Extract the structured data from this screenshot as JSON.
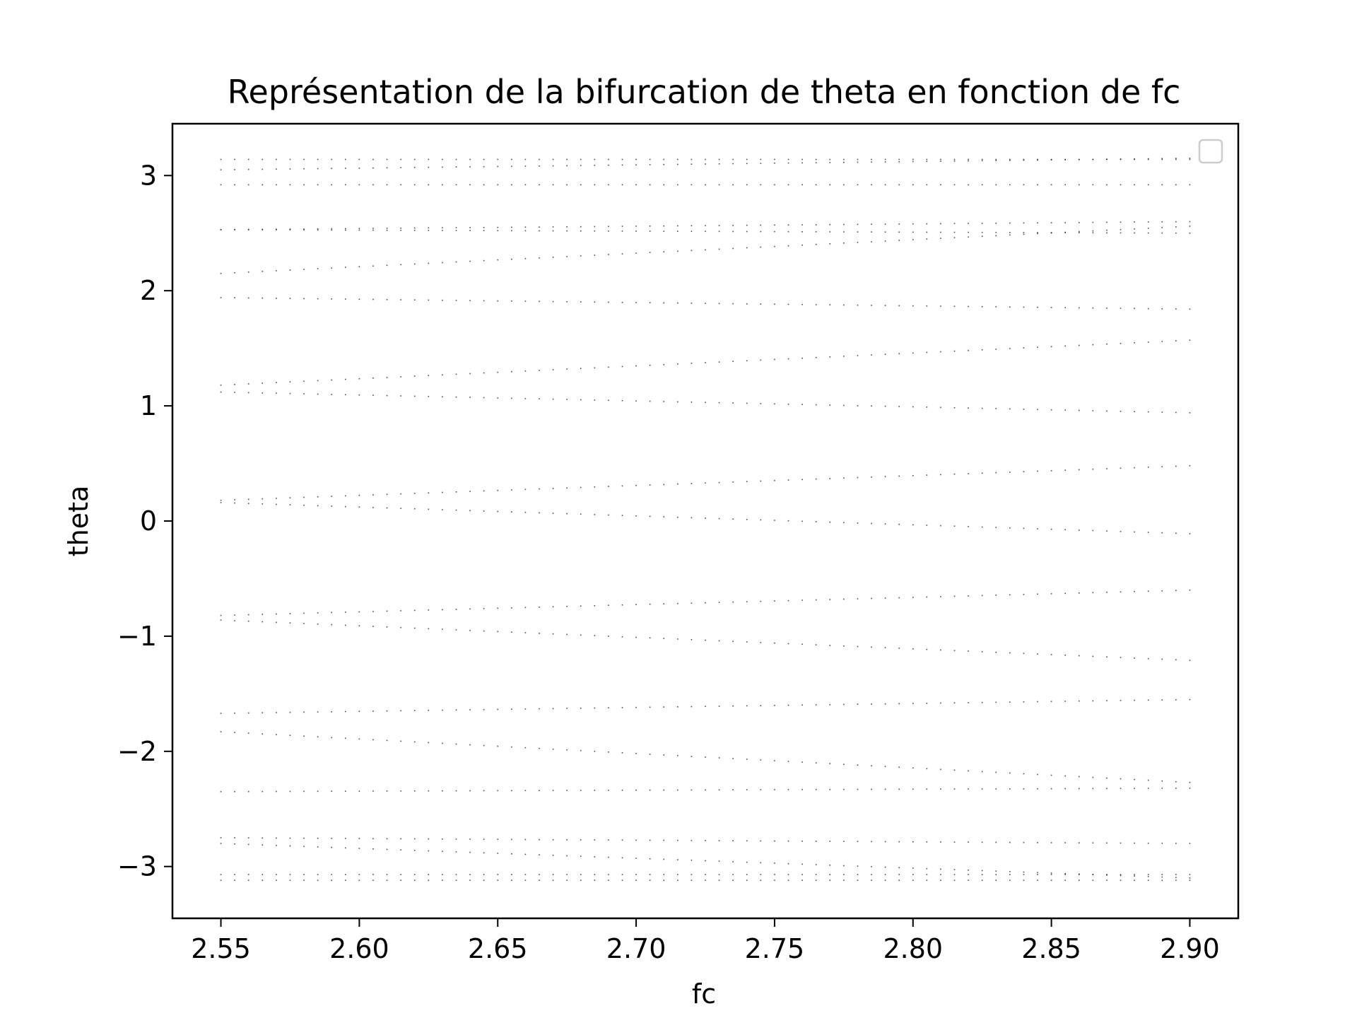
{
  "chart_data": {
    "type": "scatter",
    "title": "Représentation de la bifurcation de theta en fonction de fc",
    "xlabel": "fc",
    "ylabel": "theta",
    "xlim": [
      2.5325,
      2.9175
    ],
    "ylim": [
      -3.45,
      3.45
    ],
    "xticks": [
      2.55,
      2.6,
      2.65,
      2.7,
      2.75,
      2.8,
      2.85,
      2.9
    ],
    "xtick_labels": [
      "2.55",
      "2.60",
      "2.65",
      "2.70",
      "2.75",
      "2.80",
      "2.85",
      "2.90"
    ],
    "yticks": [
      3,
      2,
      1,
      0,
      -1,
      -2,
      -3
    ],
    "ytick_labels": [
      "3",
      "2",
      "1",
      "0",
      "−1",
      "−2",
      "−3"
    ],
    "grid": false,
    "legend": {
      "placement": "top-right",
      "entries": []
    },
    "marker_color": "#000000",
    "x_range": {
      "start": 2.55,
      "end": 2.9,
      "count": 71
    },
    "branches": [
      {
        "y_start": 3.14,
        "y_end": 3.14
      },
      {
        "y_start": 3.05,
        "y_end": 3.15
      },
      {
        "y_start": 2.92,
        "y_end": 2.92
      },
      {
        "y_start": 2.53,
        "y_end": 2.5
      },
      {
        "y_start": 2.53,
        "y_end": 2.6
      },
      {
        "y_start": 2.15,
        "y_end": 2.56
      },
      {
        "y_start": 1.94,
        "y_end": 1.84
      },
      {
        "y_start": 1.18,
        "y_end": 1.57
      },
      {
        "y_start": 1.12,
        "y_end": 0.94
      },
      {
        "y_start": 0.18,
        "y_end": 0.48
      },
      {
        "y_start": 0.16,
        "y_end": -0.11
      },
      {
        "y_start": -0.82,
        "y_end": -0.6
      },
      {
        "y_start": -0.86,
        "y_end": -1.21
      },
      {
        "y_start": -1.67,
        "y_end": -1.55
      },
      {
        "y_start": -1.83,
        "y_end": -2.27
      },
      {
        "y_start": -2.35,
        "y_end": -2.32
      },
      {
        "y_start": -2.75,
        "y_end": -2.8
      },
      {
        "y_start": -2.8,
        "y_end": -3.1
      },
      {
        "y_start": -3.07,
        "y_end": -3.07
      },
      {
        "y_start": -3.12,
        "y_end": -3.12
      }
    ]
  }
}
